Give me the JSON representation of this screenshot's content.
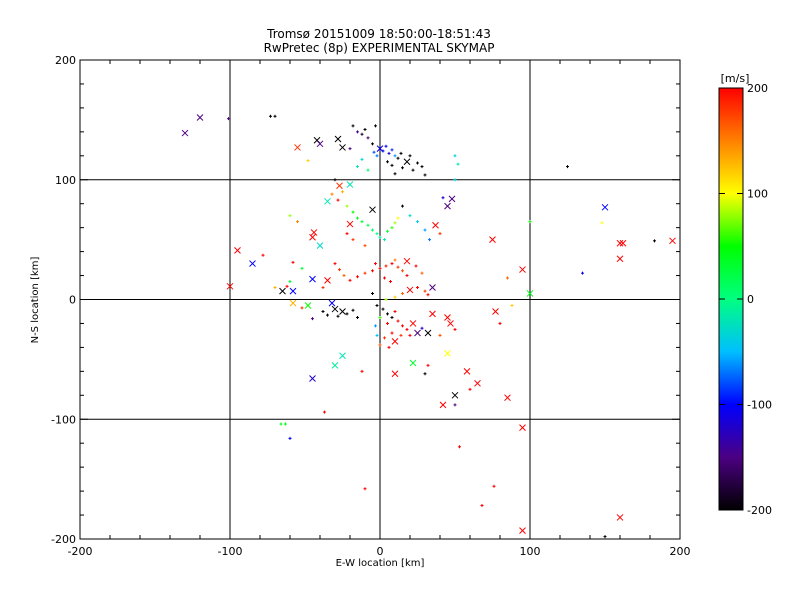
{
  "chart_data": {
    "type": "scatter",
    "title": [
      "Tromsø 20151009 18:50:00-18:51:43",
      "RwPretec (8p) EXPERIMENTAL SKYMAP"
    ],
    "xlabel": "E-W location [km]",
    "ylabel": "N-S location [km]",
    "xlim": [
      -200,
      200
    ],
    "ylim": [
      -200,
      200
    ],
    "xticks": [
      -200,
      -100,
      0,
      100,
      200
    ],
    "yticks": [
      -200,
      -100,
      0,
      100,
      200
    ],
    "grid": true,
    "colorbar": {
      "label": "[m/s]",
      "range": [
        -200,
        200
      ],
      "ticks": [
        200,
        100,
        0,
        -100,
        -200
      ],
      "colormap": [
        "#000000",
        "#4b0082",
        "#0000ff",
        "#00bfff",
        "#00ff80",
        "#00ff00",
        "#ffff00",
        "#ff8000",
        "#ff0000"
      ]
    },
    "markers": {
      "dot": "+",
      "cross": "x"
    },
    "points": [
      [
        -130,
        139,
        -150,
        "x"
      ],
      [
        -120,
        152,
        -150,
        "x"
      ],
      [
        -101,
        151,
        -150,
        "+"
      ],
      [
        -73,
        153,
        -200,
        "+"
      ],
      [
        -70,
        153,
        -200,
        "+"
      ],
      [
        -42,
        133,
        -200,
        "x"
      ],
      [
        -40,
        130,
        -150,
        "x"
      ],
      [
        -28,
        134,
        -200,
        "x"
      ],
      [
        -25,
        127,
        -200,
        "x"
      ],
      [
        -20,
        126,
        -150,
        "+"
      ],
      [
        -18,
        145,
        -200,
        "+"
      ],
      [
        -15,
        140,
        -150,
        "+"
      ],
      [
        -12,
        138,
        -180,
        "+"
      ],
      [
        -10,
        142,
        -200,
        "+"
      ],
      [
        -8,
        135,
        -160,
        "+"
      ],
      [
        -5,
        130,
        -200,
        "+"
      ],
      [
        -3,
        145,
        -200,
        "+"
      ],
      [
        0,
        126,
        -110,
        "x"
      ],
      [
        2,
        124,
        -100,
        "+"
      ],
      [
        4,
        128,
        -100,
        "+"
      ],
      [
        6,
        122,
        -120,
        "+"
      ],
      [
        8,
        125,
        -90,
        "+"
      ],
      [
        -4,
        123,
        -80,
        "+"
      ],
      [
        -2,
        120,
        -70,
        "+"
      ],
      [
        10,
        120,
        -60,
        "+"
      ],
      [
        5,
        115,
        -200,
        "+"
      ],
      [
        8,
        112,
        -200,
        "+"
      ],
      [
        12,
        118,
        -200,
        "+"
      ],
      [
        15,
        110,
        -200,
        "+"
      ],
      [
        18,
        115,
        -200,
        "x"
      ],
      [
        20,
        120,
        -200,
        "+"
      ],
      [
        22,
        108,
        -200,
        "+"
      ],
      [
        25,
        114,
        -200,
        "+"
      ],
      [
        28,
        111,
        -200,
        "+"
      ],
      [
        14,
        122,
        -200,
        "+"
      ],
      [
        10,
        105,
        -200,
        "+"
      ],
      [
        30,
        104,
        -200,
        "+"
      ],
      [
        -12,
        117,
        -30,
        "+"
      ],
      [
        -15,
        111,
        -20,
        "+"
      ],
      [
        -8,
        108,
        10,
        "+"
      ],
      [
        125,
        111,
        -200,
        "+"
      ],
      [
        50,
        120,
        -40,
        "+"
      ],
      [
        52,
        113,
        -20,
        "+"
      ],
      [
        -55,
        127,
        180,
        "x"
      ],
      [
        -48,
        116,
        120,
        "+"
      ],
      [
        -30,
        100,
        -200,
        "+"
      ],
      [
        -27,
        95,
        180,
        "x"
      ],
      [
        -32,
        88,
        150,
        "+"
      ],
      [
        -25,
        90,
        130,
        "+"
      ],
      [
        -20,
        96,
        -20,
        "x"
      ],
      [
        -28,
        83,
        200,
        "+"
      ],
      [
        -35,
        82,
        -20,
        "x"
      ],
      [
        -22,
        78,
        80,
        "+"
      ],
      [
        -18,
        73,
        50,
        "+"
      ],
      [
        -15,
        68,
        40,
        "+"
      ],
      [
        -12,
        65,
        30,
        "+"
      ],
      [
        -8,
        62,
        20,
        "+"
      ],
      [
        -5,
        58,
        10,
        "+"
      ],
      [
        -2,
        55,
        0,
        "+"
      ],
      [
        0,
        52,
        -10,
        "+"
      ],
      [
        3,
        50,
        -20,
        "+"
      ],
      [
        5,
        57,
        30,
        "+"
      ],
      [
        8,
        60,
        60,
        "+"
      ],
      [
        10,
        64,
        80,
        "+"
      ],
      [
        12,
        68,
        100,
        "+"
      ],
      [
        -20,
        63,
        200,
        "x"
      ],
      [
        -22,
        55,
        200,
        "+"
      ],
      [
        -18,
        50,
        180,
        "+"
      ],
      [
        -10,
        45,
        170,
        "+"
      ],
      [
        -5,
        75,
        -200,
        "x"
      ],
      [
        15,
        78,
        -200,
        "+"
      ],
      [
        20,
        70,
        -30,
        "+"
      ],
      [
        25,
        65,
        -40,
        "+"
      ],
      [
        30,
        58,
        -60,
        "+"
      ],
      [
        33,
        50,
        -70,
        "+"
      ],
      [
        37,
        62,
        200,
        "x"
      ],
      [
        40,
        55,
        180,
        "+"
      ],
      [
        45,
        78,
        -150,
        "x"
      ],
      [
        48,
        84,
        -150,
        "x"
      ],
      [
        42,
        85,
        -120,
        "+"
      ],
      [
        -60,
        70,
        80,
        "+"
      ],
      [
        -55,
        65,
        150,
        "+"
      ],
      [
        -45,
        52,
        200,
        "x"
      ],
      [
        -44,
        56,
        200,
        "x"
      ],
      [
        -40,
        45,
        -30,
        "x"
      ],
      [
        -95,
        41,
        200,
        "x"
      ],
      [
        -78,
        37,
        200,
        "+"
      ],
      [
        -85,
        30,
        -100,
        "x"
      ],
      [
        -58,
        31,
        200,
        "+"
      ],
      [
        -52,
        26,
        30,
        "+"
      ],
      [
        -30,
        30,
        200,
        "+"
      ],
      [
        -27,
        25,
        180,
        "+"
      ],
      [
        -24,
        20,
        160,
        "+"
      ],
      [
        -20,
        16,
        200,
        "+"
      ],
      [
        -15,
        19,
        200,
        "+"
      ],
      [
        -10,
        22,
        180,
        "+"
      ],
      [
        -5,
        24,
        200,
        "+"
      ],
      [
        0,
        26,
        200,
        "+"
      ],
      [
        4,
        28,
        190,
        "+"
      ],
      [
        8,
        30,
        200,
        "+"
      ],
      [
        12,
        27,
        180,
        "+"
      ],
      [
        15,
        24,
        170,
        "+"
      ],
      [
        18,
        20,
        200,
        "+"
      ],
      [
        3,
        18,
        200,
        "+"
      ],
      [
        7,
        15,
        200,
        "+"
      ],
      [
        10,
        33,
        150,
        "+"
      ],
      [
        -3,
        30,
        200,
        "+"
      ],
      [
        18,
        32,
        200,
        "x"
      ],
      [
        24,
        28,
        200,
        "+"
      ],
      [
        28,
        22,
        160,
        "+"
      ],
      [
        -35,
        16,
        200,
        "x"
      ],
      [
        -38,
        10,
        180,
        "+"
      ],
      [
        -45,
        17,
        -100,
        "x"
      ],
      [
        -60,
        15,
        30,
        "+"
      ],
      [
        -62,
        11,
        200,
        "+"
      ],
      [
        75,
        50,
        200,
        "x"
      ],
      [
        95,
        25,
        200,
        "x"
      ],
      [
        85,
        18,
        160,
        "+"
      ],
      [
        100,
        5,
        40,
        "x"
      ],
      [
        88,
        -5,
        120,
        "+"
      ],
      [
        150,
        77,
        -100,
        "x"
      ],
      [
        135,
        22,
        -100,
        "+"
      ],
      [
        160,
        47,
        200,
        "x"
      ],
      [
        162,
        47,
        200,
        "x"
      ],
      [
        160,
        34,
        200,
        "x"
      ],
      [
        183,
        49,
        -200,
        "+"
      ],
      [
        195,
        49,
        200,
        "x"
      ],
      [
        148,
        64,
        100,
        "+"
      ],
      [
        100,
        65,
        50,
        "+"
      ],
      [
        50,
        100,
        -40,
        "+"
      ],
      [
        -100,
        11,
        200,
        "x"
      ],
      [
        -70,
        10,
        130,
        "+"
      ],
      [
        -65,
        7,
        -200,
        "x"
      ],
      [
        -58,
        -3,
        130,
        "x"
      ],
      [
        -48,
        -5,
        50,
        "x"
      ],
      [
        -38,
        -10,
        -200,
        "+"
      ],
      [
        -35,
        -13,
        -200,
        "+"
      ],
      [
        -30,
        -8,
        -200,
        "x"
      ],
      [
        -28,
        -14,
        -200,
        "+"
      ],
      [
        -25,
        -10,
        -200,
        "x"
      ],
      [
        -22,
        -12,
        -200,
        "+"
      ],
      [
        -18,
        -9,
        -200,
        "+"
      ],
      [
        -15,
        -15,
        -200,
        "+"
      ],
      [
        -32,
        -3,
        -100,
        "x"
      ],
      [
        -45,
        -16,
        -150,
        "+"
      ],
      [
        -5,
        5,
        -200,
        "+"
      ],
      [
        -2,
        -5,
        -200,
        "+"
      ],
      [
        2,
        -8,
        -200,
        "+"
      ],
      [
        5,
        -12,
        -200,
        "+"
      ],
      [
        8,
        -15,
        -200,
        "+"
      ],
      [
        10,
        -10,
        200,
        "+"
      ],
      [
        12,
        -18,
        200,
        "+"
      ],
      [
        15,
        -22,
        200,
        "+"
      ],
      [
        18,
        -25,
        200,
        "+"
      ],
      [
        20,
        -30,
        200,
        "+"
      ],
      [
        5,
        -20,
        200,
        "+"
      ],
      [
        8,
        -28,
        200,
        "+"
      ],
      [
        3,
        -32,
        180,
        "+"
      ],
      [
        0,
        -38,
        170,
        "+"
      ],
      [
        6,
        -40,
        200,
        "+"
      ],
      [
        10,
        -35,
        200,
        "x"
      ],
      [
        14,
        -30,
        180,
        "+"
      ],
      [
        22,
        -20,
        200,
        "x"
      ],
      [
        25,
        -28,
        -150,
        "x"
      ],
      [
        28,
        -24,
        -120,
        "+"
      ],
      [
        -3,
        -22,
        -60,
        "+"
      ],
      [
        -2,
        -30,
        -50,
        "+"
      ],
      [
        0,
        -15,
        60,
        "+"
      ],
      [
        4,
        0,
        80,
        "+"
      ],
      [
        10,
        2,
        120,
        "+"
      ],
      [
        15,
        5,
        160,
        "+"
      ],
      [
        20,
        8,
        200,
        "x"
      ],
      [
        25,
        10,
        200,
        "+"
      ],
      [
        30,
        7,
        180,
        "+"
      ],
      [
        32,
        4,
        200,
        "+"
      ],
      [
        35,
        10,
        -150,
        "x"
      ],
      [
        32,
        -28,
        -200,
        "x"
      ],
      [
        35,
        -12,
        200,
        "x"
      ],
      [
        22,
        -53,
        30,
        "x"
      ],
      [
        -25,
        -47,
        -20,
        "x"
      ],
      [
        -30,
        -55,
        -10,
        "x"
      ],
      [
        -45,
        -66,
        -120,
        "x"
      ],
      [
        -12,
        -60,
        200,
        "+"
      ],
      [
        10,
        -62,
        200,
        "x"
      ],
      [
        30,
        -62,
        -200,
        "+"
      ],
      [
        32,
        -55,
        200,
        "+"
      ],
      [
        45,
        -45,
        100,
        "x"
      ],
      [
        50,
        -80,
        -200,
        "x"
      ],
      [
        42,
        -88,
        200,
        "x"
      ],
      [
        58,
        -60,
        200,
        "x"
      ],
      [
        65,
        -70,
        200,
        "x"
      ],
      [
        77,
        -10,
        200,
        "x"
      ],
      [
        80,
        -20,
        200,
        "+"
      ],
      [
        85,
        -82,
        200,
        "x"
      ],
      [
        95,
        -107,
        200,
        "x"
      ],
      [
        47,
        -20,
        200,
        "x"
      ],
      [
        45,
        -15,
        200,
        "x"
      ],
      [
        50,
        -25,
        200,
        "+"
      ],
      [
        40,
        -30,
        170,
        "+"
      ],
      [
        -63,
        -104,
        40,
        "+"
      ],
      [
        -66,
        -104,
        40,
        "+"
      ],
      [
        -60,
        -116,
        -100,
        "+"
      ],
      [
        -37,
        -94,
        200,
        "+"
      ],
      [
        -10,
        -158,
        200,
        "+"
      ],
      [
        53,
        -123,
        200,
        "+"
      ],
      [
        68,
        -172,
        200,
        "+"
      ],
      [
        76,
        -156,
        200,
        "+"
      ],
      [
        95,
        -193,
        200,
        "x"
      ],
      [
        150,
        -198,
        -200,
        "+"
      ],
      [
        160,
        -182,
        200,
        "x"
      ],
      [
        -52,
        -7,
        180,
        "+"
      ],
      [
        -58,
        7,
        -100,
        "x"
      ],
      [
        50,
        -88,
        -150,
        "+"
      ],
      [
        60,
        -75,
        200,
        "+"
      ]
    ]
  }
}
